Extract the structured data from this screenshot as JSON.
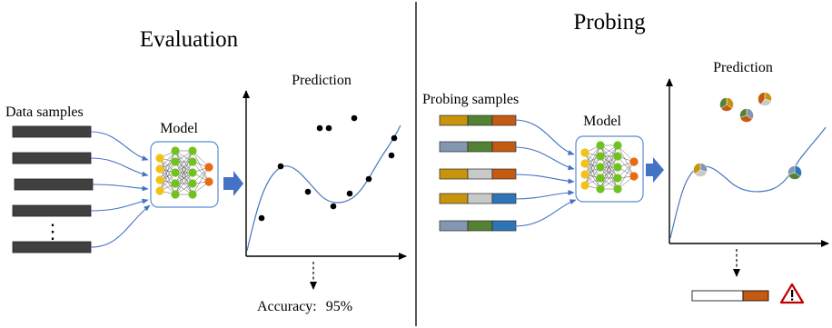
{
  "evaluation": {
    "title": "Evaluation",
    "data_samples_label": "Data samples",
    "ellipsis": "⋮",
    "model_label": "Model",
    "prediction_label": "Prediction",
    "accuracy_label": "Accuracy:",
    "accuracy_value": "95%"
  },
  "probing": {
    "title": "Probing",
    "probing_samples_label": "Probing  samples",
    "model_label": "Model",
    "prediction_label": "Prediction"
  },
  "colors": {
    "sample_bar": "#404040",
    "network_border": "#5b8bd0",
    "input_neuron": "#f2c21b",
    "hidden_neuron": "#72c21f",
    "output_neuron": "#ea6a10",
    "arrow_blue": "#4472c4",
    "curve": "#4a76c0",
    "segment_gold": "#c8940c",
    "segment_green": "#548235",
    "segment_orange": "#c55a11",
    "segment_steel": "#8497b0",
    "segment_gray": "#c9c9c9",
    "segment_blue": "#2e75b6",
    "warning_red": "#c00000"
  },
  "probe_rows": [
    [
      "segment_gold",
      "segment_green",
      "segment_orange"
    ],
    [
      "segment_steel",
      "segment_green",
      "segment_orange"
    ],
    [
      "segment_gold",
      "segment_gray",
      "segment_orange"
    ],
    [
      "segment_gold",
      "segment_gray",
      "segment_blue"
    ],
    [
      "segment_steel",
      "segment_green",
      "segment_blue"
    ]
  ],
  "warning_icon": "warning-triangle-icon"
}
